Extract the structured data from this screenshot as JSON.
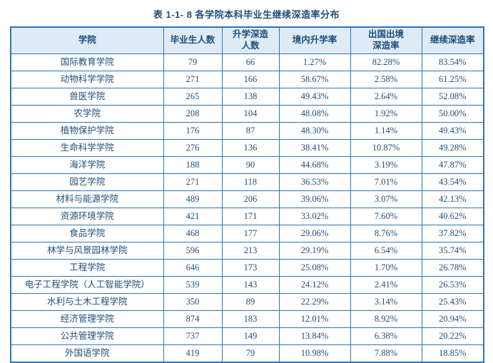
{
  "title": "表 1-1- 8  各学院本科毕业生继续深造率分布",
  "colors": {
    "border": "#2E74B5",
    "header_background": "#DEEBF7",
    "text": "#1F4E79"
  },
  "table": {
    "headers": [
      "学院",
      "毕业生人数",
      "升学深造\n人数",
      "境内升学率",
      "出国出境\n深造率",
      "继续深造率"
    ],
    "rows": [
      [
        "国际教育学院",
        "79",
        "66",
        "1.27%",
        "82.28%",
        "83.54%"
      ],
      [
        "动物科学学院",
        "271",
        "166",
        "58.67%",
        "2.58%",
        "61.25%"
      ],
      [
        "兽医学院",
        "265",
        "138",
        "49.43%",
        "2.64%",
        "52.08%"
      ],
      [
        "农学院",
        "208",
        "104",
        "48.08%",
        "1.92%",
        "50.00%"
      ],
      [
        "植物保护学院",
        "176",
        "87",
        "48.30%",
        "1.14%",
        "49.43%"
      ],
      [
        "生命科学学院",
        "276",
        "136",
        "38.41%",
        "10.87%",
        "49.28%"
      ],
      [
        "海洋学院",
        "188",
        "90",
        "44.68%",
        "3.19%",
        "47.87%"
      ],
      [
        "园艺学院",
        "271",
        "118",
        "36.53%",
        "7.01%",
        "43.54%"
      ],
      [
        "材料与能源学院",
        "489",
        "206",
        "39.06%",
        "3.07%",
        "42.13%"
      ],
      [
        "资源环境学院",
        "421",
        "171",
        "33.02%",
        "7.60%",
        "40.62%"
      ],
      [
        "食品学院",
        "468",
        "177",
        "29.06%",
        "8.76%",
        "37.82%"
      ],
      [
        "林学与风景园林学院",
        "596",
        "213",
        "29.19%",
        "6.54%",
        "35.74%"
      ],
      [
        "工程学院",
        "646",
        "173",
        "25.08%",
        "1.70%",
        "26.78%"
      ],
      [
        "电子工程学院（人工智能学院）",
        "539",
        "143",
        "24.12%",
        "2.41%",
        "26.53%"
      ],
      [
        "水利与土木工程学院",
        "350",
        "89",
        "22.29%",
        "3.14%",
        "25.43%"
      ],
      [
        "经济管理学院",
        "874",
        "183",
        "12.01%",
        "8.92%",
        "20.94%"
      ],
      [
        "公共管理学院",
        "737",
        "149",
        "13.84%",
        "6.38%",
        "20.22%"
      ],
      [
        "外国语学院",
        "419",
        "79",
        "10.98%",
        "7.88%",
        "18.85%"
      ]
    ]
  }
}
